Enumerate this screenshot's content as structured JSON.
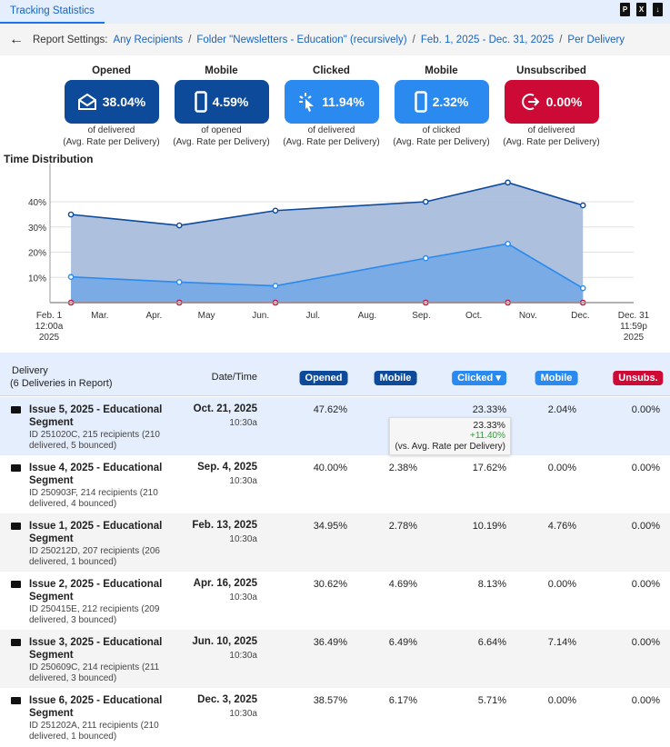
{
  "tab": {
    "label": "Tracking Statistics"
  },
  "toolbar_icons": [
    "pdf-icon",
    "excel-icon",
    "export-icon"
  ],
  "settings": {
    "label": "Report Settings:",
    "items": [
      "Any Recipients",
      "Folder \"Newsletters - Education\" (recursively)",
      "Feb. 1, 2025 - Dec. 31, 2025",
      "Per Delivery"
    ]
  },
  "kpis": [
    {
      "title": "Opened",
      "value": "38.04%",
      "sub1": "of delivered",
      "sub2": "(Avg. Rate per Delivery)",
      "color": "#0d4a9a",
      "icon": "envelope-open-icon"
    },
    {
      "title": "Mobile",
      "value": "4.59%",
      "sub1": "of opened",
      "sub2": "(Avg. Rate per Delivery)",
      "color": "#0d4a9a",
      "icon": "mobile-icon"
    },
    {
      "title": "Clicked",
      "value": "11.94%",
      "sub1": "of delivered",
      "sub2": "(Avg. Rate per Delivery)",
      "color": "#2a8af0",
      "icon": "click-icon"
    },
    {
      "title": "Mobile",
      "value": "2.32%",
      "sub1": "of clicked",
      "sub2": "(Avg. Rate per Delivery)",
      "color": "#2a8af0",
      "icon": "mobile-icon"
    },
    {
      "title": "Unsubscribed",
      "value": "0.00%",
      "sub1": "of delivered",
      "sub2": "(Avg. Rate per Delivery)",
      "color": "#cc0a35",
      "icon": "unsubscribe-icon"
    }
  ],
  "section_title": "Time Distribution",
  "chart_data": {
    "type": "area",
    "x_range": [
      "2025-02-01",
      "2025-12-31"
    ],
    "x_start_label": [
      "Feb. 1",
      "12:00a",
      "2025"
    ],
    "x_end_label": [
      "Dec. 31",
      "11:59p",
      "2025"
    ],
    "x_ticks": [
      {
        "date": "2025-03-01",
        "label": "Mar."
      },
      {
        "date": "2025-04-01",
        "label": "Apr."
      },
      {
        "date": "2025-05-01",
        "label": "May"
      },
      {
        "date": "2025-06-01",
        "label": "Jun."
      },
      {
        "date": "2025-07-01",
        "label": "Jul."
      },
      {
        "date": "2025-08-01",
        "label": "Aug."
      },
      {
        "date": "2025-09-01",
        "label": "Sep."
      },
      {
        "date": "2025-10-01",
        "label": "Oct."
      },
      {
        "date": "2025-11-01",
        "label": "Nov."
      },
      {
        "date": "2025-12-01",
        "label": "Dec."
      }
    ],
    "y_ticks": [
      10,
      20,
      30,
      40
    ],
    "y_tick_labels": [
      "10%",
      "20%",
      "30%",
      "40%"
    ],
    "ylim": [
      0,
      50
    ],
    "grid": true,
    "x": [
      "2025-02-13",
      "2025-04-16",
      "2025-06-10",
      "2025-09-04",
      "2025-10-21",
      "2025-12-03"
    ],
    "series": [
      {
        "values": [
          34.95,
          30.62,
          36.49,
          40.0,
          47.62,
          38.57
        ],
        "color": "#0d4a9a",
        "fill": "#a9bddb"
      },
      {
        "values": [
          10.19,
          8.13,
          6.64,
          17.62,
          23.33,
          5.71
        ],
        "color": "#2a8af0",
        "fill": "#74a8e4"
      },
      {
        "values": [
          0,
          0,
          0,
          0,
          0,
          0
        ],
        "color": "#cc0a35"
      }
    ]
  },
  "table": {
    "header": {
      "delivery": "Delivery",
      "count": "(6 Deliveries in Report)",
      "date": "Date/Time",
      "pills": [
        {
          "label": "Opened",
          "color": "#0d4a9a"
        },
        {
          "label": "Mobile",
          "color": "#0d4a9a"
        },
        {
          "label": "Clicked ▾",
          "color": "#2a8af0"
        },
        {
          "label": "Mobile",
          "color": "#2a8af0"
        },
        {
          "label": "Unsubs.",
          "color": "#cc0a35"
        }
      ]
    },
    "rows": [
      {
        "name": "Issue 5, 2025 - Educational Segment",
        "meta": "ID 251020C, 215 recipients (210 delivered, 5 bounced)",
        "date": "Oct. 21, 2025",
        "time": "10:30a",
        "vals": [
          "47.62%",
          "",
          "23.33%",
          "2.04%",
          "0.00%"
        ]
      },
      {
        "name": "Issue 4, 2025 - Educational Segment",
        "meta": "ID 250903F, 214 recipients (210 delivered, 4 bounced)",
        "date": "Sep. 4, 2025",
        "time": "10:30a",
        "vals": [
          "40.00%",
          "2.38%",
          "17.62%",
          "0.00%",
          "0.00%"
        ]
      },
      {
        "name": "Issue 1, 2025 - Educational Segment",
        "meta": "ID 250212D, 207 recipients (206 delivered, 1 bounced)",
        "date": "Feb. 13, 2025",
        "time": "10:30a",
        "vals": [
          "34.95%",
          "2.78%",
          "10.19%",
          "4.76%",
          "0.00%"
        ]
      },
      {
        "name": "Issue 2, 2025 - Educational Segment",
        "meta": "ID 250415E, 212 recipients (209 delivered, 3 bounced)",
        "date": "Apr. 16, 2025",
        "time": "10:30a",
        "vals": [
          "30.62%",
          "4.69%",
          "8.13%",
          "0.00%",
          "0.00%"
        ]
      },
      {
        "name": "Issue 3, 2025 - Educational Segment",
        "meta": "ID 250609C, 214 recipients (211 delivered, 3 bounced)",
        "date": "Jun. 10, 2025",
        "time": "10:30a",
        "vals": [
          "36.49%",
          "6.49%",
          "6.64%",
          "7.14%",
          "0.00%"
        ]
      },
      {
        "name": "Issue 6, 2025 - Educational Segment",
        "meta": "ID 251202A, 211 recipients (210 delivered, 1 bounced)",
        "date": "Dec. 3, 2025",
        "time": "10:30a",
        "vals": [
          "38.57%",
          "6.17%",
          "5.71%",
          "0.00%",
          "0.00%"
        ]
      }
    ]
  },
  "tooltip": {
    "value": "23.33%",
    "delta": "+11.40%",
    "note": "(vs. Avg. Rate per Delivery)",
    "delta_color": "#2e9e3a"
  }
}
